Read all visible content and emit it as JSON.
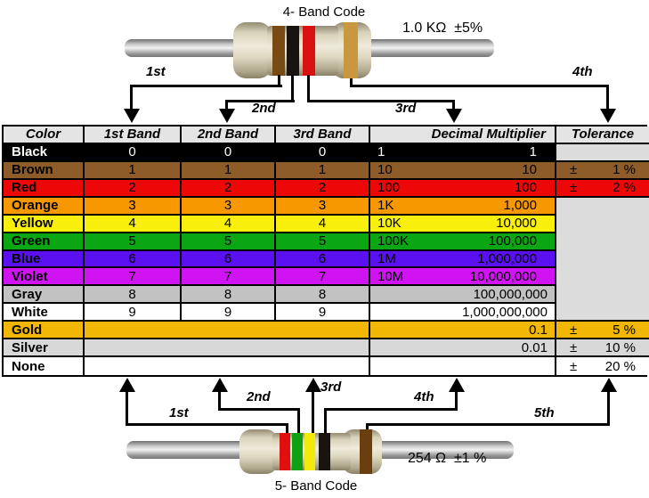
{
  "top_resistor": {
    "title": "4- Band Code",
    "value": "1.0 KΩ  ±5%",
    "bands": [
      {
        "name": "brown",
        "color": "#7A4A14"
      },
      {
        "name": "black",
        "color": "#1A1410"
      },
      {
        "name": "red",
        "color": "#D91111"
      },
      {
        "name": "gold",
        "color": "#C9973F"
      }
    ],
    "pointer_labels": [
      "1st",
      "2nd",
      "3rd",
      "4th"
    ]
  },
  "bottom_resistor": {
    "title": "5- Band Code",
    "value": "254 Ω  ±1 %",
    "bands": [
      {
        "name": "red",
        "color": "#E01010"
      },
      {
        "name": "green",
        "color": "#10A012"
      },
      {
        "name": "yellow",
        "color": "#F2EA0A"
      },
      {
        "name": "black",
        "color": "#1A1410"
      },
      {
        "name": "brown",
        "color": "#6B3E10"
      }
    ],
    "pointer_labels": [
      "1st",
      "2nd",
      "3rd",
      "4th",
      "5th"
    ]
  },
  "table": {
    "tolerance_sign": "±",
    "headers": {
      "color": "Color",
      "band1": "1st Band",
      "band2": "2nd Band",
      "band3": "3rd Band",
      "multiplier": "Decimal Multiplier",
      "tolerance": "Tolerance"
    },
    "header_bg": "#E4E4E4",
    "empty_tolerance_bg": "#DCDCDC",
    "rows": [
      {
        "name": "Black",
        "bg": "#000000",
        "fg": "#FFFFFF",
        "bands": [
          "0",
          "0",
          "0"
        ],
        "mult_prefix": "1",
        "mult_value": "1",
        "tol": ""
      },
      {
        "name": "Brown",
        "bg": "#8E5C28",
        "bands": [
          "1",
          "1",
          "1"
        ],
        "mult_prefix": "10",
        "mult_value": "10",
        "tol": "1 %"
      },
      {
        "name": "Red",
        "bg": "#EE0707",
        "bands": [
          "2",
          "2",
          "2"
        ],
        "mult_prefix": "100",
        "mult_value": "100",
        "tol": "2 %"
      },
      {
        "name": "Orange",
        "bg": "#F89800",
        "bands": [
          "3",
          "3",
          "3"
        ],
        "mult_prefix": "1K",
        "mult_value": "1,000"
      },
      {
        "name": "Yellow",
        "bg": "#F8EF0C",
        "bands": [
          "4",
          "4",
          "4"
        ],
        "mult_prefix": "10K",
        "mult_value": "10,000"
      },
      {
        "name": "Green",
        "bg": "#0BA614",
        "bands": [
          "5",
          "5",
          "5"
        ],
        "mult_prefix": "100K",
        "mult_value": "100,000"
      },
      {
        "name": "Blue",
        "bg": "#5A10F0",
        "bands": [
          "6",
          "6",
          "6"
        ],
        "mult_prefix": "1M",
        "mult_value": "1,000,000"
      },
      {
        "name": "Violet",
        "bg": "#D013F2",
        "bands": [
          "7",
          "7",
          "7"
        ],
        "mult_prefix": "10M",
        "mult_value": "10,000,000"
      },
      {
        "name": "Gray",
        "bg": "#C2C2C2",
        "bands": [
          "8",
          "8",
          "8"
        ],
        "mult_prefix": "",
        "mult_value": "100,000,000"
      },
      {
        "name": "White",
        "bg": "#FFFFFF",
        "bands": [
          "9",
          "9",
          "9"
        ],
        "mult_prefix": "",
        "mult_value": "1,000,000,000"
      },
      {
        "name": "Gold",
        "bg": "#F2B705",
        "bands_merged": true,
        "mult_value": "0.1",
        "tol": "5 %"
      },
      {
        "name": "Silver",
        "bg": "#D8D8D8",
        "bands_merged": true,
        "mult_value": "0.01",
        "tol": "10 %"
      },
      {
        "name": "None",
        "bg": "#FFFFFF",
        "bands_merged": true,
        "mult_value": "",
        "tol": "20 %"
      }
    ]
  }
}
